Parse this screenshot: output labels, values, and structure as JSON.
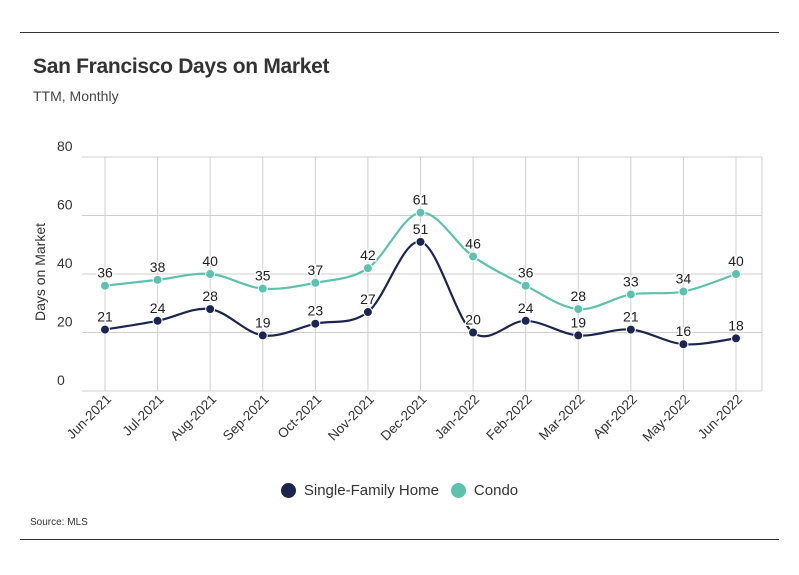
{
  "header": {
    "title": "San Francisco Days on Market",
    "subtitle": "TTM, Monthly"
  },
  "footer": {
    "source": "Source:  MLS"
  },
  "colors": {
    "single_family": "#1b2550",
    "condo": "#5cc2ad",
    "grid": "#cfcfcf",
    "axis_text": "#333333"
  },
  "chart_data": {
    "type": "line",
    "title": "San Francisco Days on Market",
    "subtitle": "TTM, Monthly",
    "xlabel": "",
    "ylabel": "Days on Market",
    "ylim": [
      0,
      80
    ],
    "yticks": [
      0,
      20,
      40,
      60,
      80
    ],
    "grid": true,
    "smooth": true,
    "legend_position": "bottom-center",
    "categories": [
      "Jun-2021",
      "Jul-2021",
      "Aug-2021",
      "Sep-2021",
      "Oct-2021",
      "Nov-2021",
      "Dec-2021",
      "Jan-2022",
      "Feb-2022",
      "Mar-2022",
      "Apr-2022",
      "May-2022",
      "Jun-2022"
    ],
    "series": [
      {
        "name": "Single-Family Home",
        "color": "#1b2550",
        "values": [
          21,
          24,
          28,
          19,
          23,
          27,
          51,
          20,
          24,
          19,
          21,
          16,
          18
        ]
      },
      {
        "name": "Condo",
        "color": "#5cc2ad",
        "values": [
          36,
          38,
          40,
          35,
          37,
          42,
          61,
          46,
          36,
          28,
          33,
          34,
          40
        ]
      }
    ]
  }
}
